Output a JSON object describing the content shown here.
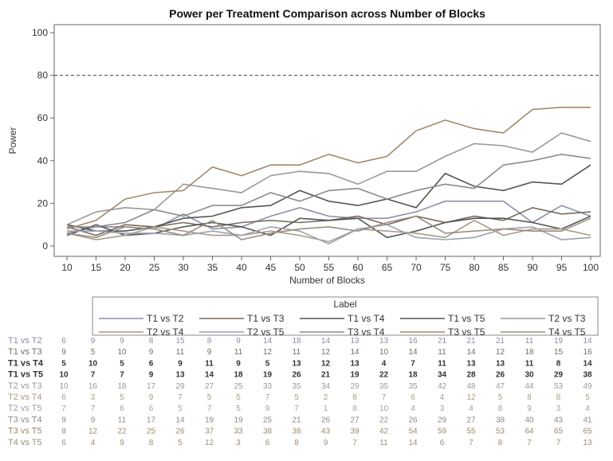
{
  "chart_data": {
    "type": "line",
    "title": "Power per Treatment Comparison across Number of Blocks",
    "xlabel": "Number of Blocks",
    "ylabel": "Power",
    "ylim": [
      0,
      100
    ],
    "yticks": [
      "0",
      "20",
      "40",
      "60",
      "80",
      "100"
    ],
    "x": [
      10,
      15,
      20,
      25,
      30,
      35,
      40,
      45,
      50,
      55,
      60,
      65,
      70,
      75,
      80,
      85,
      90,
      95,
      100
    ],
    "x_tick_labels": [
      "10",
      "15",
      "20",
      "25",
      "30",
      "35",
      "40",
      "45",
      "50",
      "55",
      "60",
      "65",
      "70",
      "75",
      "80",
      "85",
      "90",
      "95",
      "100"
    ],
    "reference_line": 80,
    "grid": false,
    "legend": {
      "title": "Label",
      "placement": "bottom"
    },
    "series": [
      {
        "name": "T1 vs T2",
        "color": "#8c8fa8",
        "values": [
          6,
          9,
          9,
          8,
          15,
          8,
          9,
          14,
          18,
          14,
          13,
          13,
          16,
          21,
          21,
          21,
          11,
          19,
          14
        ]
      },
      {
        "name": "T1 vs T3",
        "color": "#7a6b5f",
        "values": [
          9,
          5,
          10,
          9,
          11,
          9,
          11,
          12,
          11,
          12,
          14,
          10,
          14,
          11,
          14,
          12,
          18,
          15,
          16
        ]
      },
      {
        "name": "T1 vs T4",
        "color": "#555555",
        "values": [
          5,
          10,
          5,
          6,
          9,
          11,
          9,
          5,
          13,
          12,
          13,
          4,
          7,
          11,
          13,
          13,
          11,
          8,
          14
        ]
      },
      {
        "name": "T1 vs T5",
        "color": "#555555",
        "values": [
          10,
          7,
          7,
          9,
          13,
          14,
          18,
          19,
          26,
          21,
          19,
          22,
          18,
          34,
          28,
          26,
          30,
          29,
          38
        ]
      },
      {
        "name": "T2 vs T3",
        "color": "#999999",
        "values": [
          10,
          16,
          18,
          17,
          29,
          27,
          25,
          33,
          35,
          34,
          29,
          35,
          35,
          42,
          48,
          47,
          44,
          53,
          49
        ]
      },
      {
        "name": "T2 vs T4",
        "color": "#a79c85",
        "values": [
          6,
          3,
          5,
          9,
          7,
          5,
          5,
          7,
          5,
          2,
          8,
          7,
          6,
          4,
          12,
          5,
          8,
          8,
          5
        ]
      },
      {
        "name": "T2 vs T5",
        "color": "#9aa2b0",
        "values": [
          7,
          7,
          6,
          6,
          5,
          7,
          5,
          9,
          7,
          1,
          8,
          10,
          4,
          3,
          4,
          8,
          9,
          3,
          4
        ]
      },
      {
        "name": "T3 vs T4",
        "color": "#8c8c8c",
        "values": [
          9,
          9,
          11,
          17,
          14,
          19,
          19,
          25,
          21,
          26,
          27,
          22,
          26,
          29,
          27,
          38,
          40,
          43,
          41
        ]
      },
      {
        "name": "T3 vs T5",
        "color": "#a08a6a",
        "values": [
          8,
          12,
          22,
          25,
          26,
          37,
          33,
          38,
          38,
          43,
          39,
          42,
          54,
          59,
          55,
          53,
          64,
          65,
          65
        ]
      },
      {
        "name": "T4 vs T5",
        "color": "#9a8f80",
        "values": [
          6,
          4,
          9,
          8,
          5,
          12,
          3,
          6,
          8,
          9,
          7,
          11,
          14,
          6,
          7,
          8,
          7,
          7,
          13
        ]
      }
    ]
  }
}
